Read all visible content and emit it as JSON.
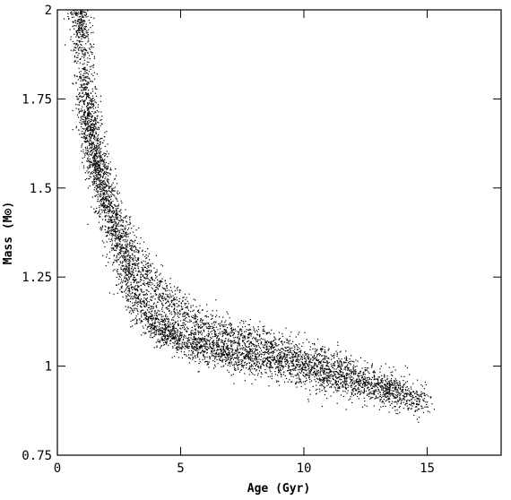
{
  "chart_data": {
    "type": "scatter",
    "title": "",
    "xlabel": "Age (Gyr)",
    "ylabel": "Mass (M⊙)",
    "xlim": [
      0,
      18
    ],
    "ylim": [
      0.75,
      2
    ],
    "x_ticks": [
      0,
      5,
      10,
      15
    ],
    "x_tick_labels": [
      "0",
      "5",
      "10",
      "15"
    ],
    "y_ticks": [
      0.75,
      1,
      1.25,
      1.5,
      1.75,
      2
    ],
    "y_tick_labels": [
      "0.75",
      "1",
      "1.25",
      "1.5",
      "1.75",
      "2"
    ],
    "grid": false,
    "legend": "none",
    "point_color": "#000000",
    "series": [
      {
        "points": [
          [
            0.9,
            2.0
          ],
          [
            1.0,
            1.9
          ],
          [
            1.1,
            1.8
          ],
          [
            1.3,
            1.7
          ],
          [
            1.5,
            1.6
          ],
          [
            1.8,
            1.5
          ],
          [
            2.1,
            1.42
          ],
          [
            2.5,
            1.33
          ],
          [
            3.0,
            1.22
          ],
          [
            3.6,
            1.14
          ],
          [
            4.5,
            1.09
          ],
          [
            5.5,
            1.06
          ],
          [
            6.5,
            1.04
          ],
          [
            8.0,
            1.02
          ],
          [
            9.5,
            1.0
          ],
          [
            11.0,
            0.97
          ],
          [
            12.5,
            0.94
          ],
          [
            14.0,
            0.92
          ],
          [
            15.0,
            0.9
          ]
        ]
      },
      {
        "points": [
          [
            1.2,
            1.7
          ],
          [
            1.5,
            1.6
          ],
          [
            2.0,
            1.48
          ],
          [
            2.6,
            1.38
          ],
          [
            3.2,
            1.3
          ],
          [
            3.8,
            1.24
          ],
          [
            4.5,
            1.18
          ],
          [
            5.5,
            1.13
          ],
          [
            6.5,
            1.1
          ],
          [
            8.0,
            1.07
          ],
          [
            9.5,
            1.04
          ],
          [
            11.0,
            1.01
          ],
          [
            12.5,
            0.97
          ],
          [
            14.0,
            0.93
          ]
        ]
      }
    ]
  }
}
